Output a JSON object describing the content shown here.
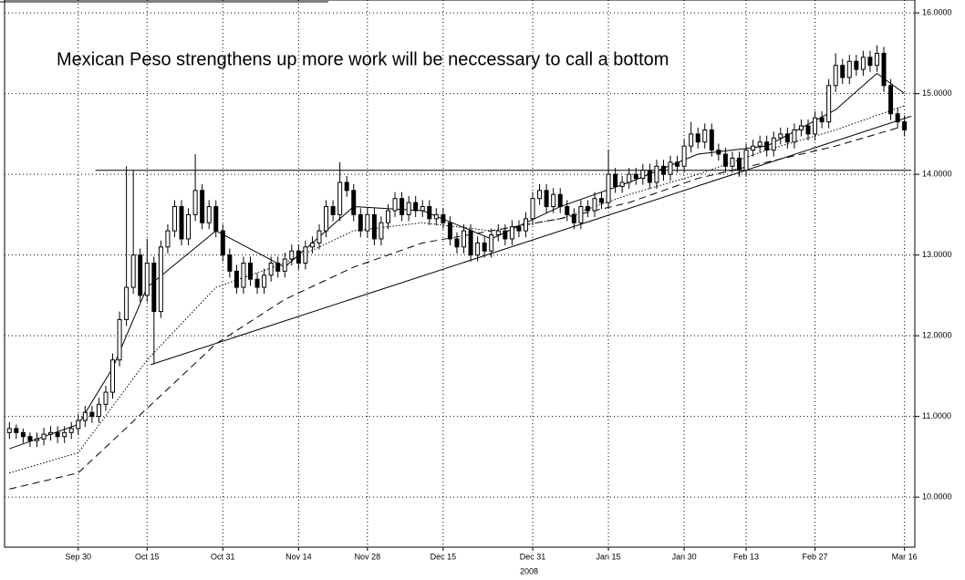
{
  "chart_data": {
    "type": "candlestick",
    "title": "Mexican Peso strengthens up more work will be neccessary to call a bottom",
    "xlabel": "2008",
    "xlim": [
      -0.7,
      131.5
    ],
    "ylim": [
      9.38,
      16.16
    ],
    "yticks": [
      {
        "value": 16,
        "label": "16.0000"
      },
      {
        "value": 15,
        "label": "15.0000"
      },
      {
        "value": 14,
        "label": "14.0000"
      },
      {
        "value": 13,
        "label": "13.0000"
      },
      {
        "value": 12,
        "label": "12.0000"
      },
      {
        "value": 11,
        "label": "11.0000"
      },
      {
        "value": 10,
        "label": "10.0000"
      }
    ],
    "xticks": [
      {
        "value": 10,
        "label": "Sep 30"
      },
      {
        "value": 20,
        "label": "Oct 15"
      },
      {
        "value": 31,
        "label": "Oct 31"
      },
      {
        "value": 42,
        "label": "Nov 14"
      },
      {
        "value": 52,
        "label": "Nov 28"
      },
      {
        "value": 63,
        "label": "Dec 15"
      },
      {
        "value": 76,
        "label": "Dec 31"
      },
      {
        "value": 87,
        "label": "Jan 15"
      },
      {
        "value": 98,
        "label": "Jan 30"
      },
      {
        "value": 107,
        "label": "Feb 13"
      },
      {
        "value": 117,
        "label": "Feb 27"
      },
      {
        "value": 130,
        "label": "Mar 16"
      }
    ],
    "grid": true,
    "up_color": "#ffffff",
    "down_color": "#000000",
    "ohlc": [
      [
        10.8,
        10.93,
        10.72,
        10.85
      ],
      [
        10.85,
        10.9,
        10.72,
        10.8
      ],
      [
        10.8,
        10.85,
        10.67,
        10.75
      ],
      [
        10.75,
        10.8,
        10.62,
        10.7
      ],
      [
        10.7,
        10.8,
        10.62,
        10.72
      ],
      [
        10.72,
        10.86,
        10.64,
        10.78
      ],
      [
        10.78,
        10.88,
        10.7,
        10.8
      ],
      [
        10.8,
        10.88,
        10.67,
        10.75
      ],
      [
        10.75,
        10.88,
        10.67,
        10.8
      ],
      [
        10.8,
        10.93,
        10.72,
        10.85
      ],
      [
        10.85,
        11.03,
        10.77,
        10.95
      ],
      [
        10.95,
        11.13,
        10.87,
        11.05
      ],
      [
        11.05,
        11.13,
        10.92,
        11.0
      ],
      [
        11.0,
        11.23,
        10.92,
        11.15
      ],
      [
        11.15,
        11.38,
        11.07,
        11.3
      ],
      [
        11.3,
        11.78,
        11.22,
        11.7
      ],
      [
        11.7,
        12.3,
        11.62,
        12.2
      ],
      [
        12.2,
        14.1,
        12.12,
        12.6
      ],
      [
        12.6,
        14.05,
        12.52,
        13.0
      ],
      [
        13.0,
        13.08,
        12.42,
        12.5
      ],
      [
        12.5,
        13.2,
        12.42,
        12.9
      ],
      [
        12.9,
        12.98,
        11.65,
        12.3
      ],
      [
        12.3,
        13.18,
        12.22,
        13.1
      ],
      [
        13.1,
        13.38,
        13.02,
        13.3
      ],
      [
        13.3,
        13.68,
        13.22,
        13.6
      ],
      [
        13.6,
        13.68,
        13.12,
        13.2
      ],
      [
        13.2,
        13.58,
        13.12,
        13.5
      ],
      [
        13.5,
        14.25,
        13.42,
        13.8
      ],
      [
        13.8,
        13.88,
        13.32,
        13.4
      ],
      [
        13.4,
        13.68,
        13.32,
        13.6
      ],
      [
        13.6,
        13.68,
        13.22,
        13.3
      ],
      [
        13.3,
        13.38,
        12.92,
        13.0
      ],
      [
        13.0,
        13.08,
        12.72,
        12.8
      ],
      [
        12.8,
        12.88,
        12.52,
        12.6
      ],
      [
        12.6,
        12.98,
        12.52,
        12.9
      ],
      [
        12.9,
        12.98,
        12.62,
        12.7
      ],
      [
        12.7,
        12.78,
        12.52,
        12.6
      ],
      [
        12.6,
        12.83,
        12.52,
        12.75
      ],
      [
        12.75,
        12.98,
        12.67,
        12.9
      ],
      [
        12.9,
        12.98,
        12.72,
        12.8
      ],
      [
        12.8,
        13.03,
        12.72,
        12.95
      ],
      [
        12.95,
        13.13,
        12.87,
        13.05
      ],
      [
        13.05,
        13.13,
        12.82,
        12.9
      ],
      [
        12.9,
        13.18,
        12.82,
        13.1
      ],
      [
        13.1,
        13.23,
        13.02,
        13.15
      ],
      [
        13.15,
        13.38,
        13.07,
        13.3
      ],
      [
        13.3,
        13.68,
        13.22,
        13.6
      ],
      [
        13.6,
        13.68,
        13.42,
        13.5
      ],
      [
        13.5,
        14.15,
        13.42,
        13.9
      ],
      [
        13.9,
        13.98,
        13.72,
        13.8
      ],
      [
        13.8,
        13.88,
        13.42,
        13.5
      ],
      [
        13.5,
        13.58,
        13.22,
        13.3
      ],
      [
        13.3,
        13.58,
        13.22,
        13.5
      ],
      [
        13.5,
        13.58,
        13.12,
        13.2
      ],
      [
        13.2,
        13.48,
        13.12,
        13.4
      ],
      [
        13.4,
        13.63,
        13.32,
        13.55
      ],
      [
        13.55,
        13.78,
        13.47,
        13.7
      ],
      [
        13.7,
        13.78,
        13.42,
        13.5
      ],
      [
        13.5,
        13.73,
        13.42,
        13.65
      ],
      [
        13.65,
        13.73,
        13.47,
        13.55
      ],
      [
        13.55,
        13.68,
        13.47,
        13.6
      ],
      [
        13.6,
        13.68,
        13.37,
        13.45
      ],
      [
        13.45,
        13.58,
        13.37,
        13.5
      ],
      [
        13.5,
        13.58,
        13.32,
        13.4
      ],
      [
        13.4,
        13.48,
        13.12,
        13.2
      ],
      [
        13.2,
        13.28,
        13.02,
        13.1
      ],
      [
        13.1,
        13.38,
        13.02,
        13.3
      ],
      [
        13.3,
        13.38,
        12.92,
        13.0
      ],
      [
        13.0,
        13.23,
        12.92,
        13.15
      ],
      [
        13.15,
        13.23,
        12.97,
        13.05
      ],
      [
        13.05,
        13.33,
        12.97,
        13.25
      ],
      [
        13.25,
        13.38,
        13.17,
        13.3
      ],
      [
        13.3,
        13.38,
        13.12,
        13.2
      ],
      [
        13.2,
        13.43,
        13.12,
        13.35
      ],
      [
        13.35,
        13.43,
        13.22,
        13.3
      ],
      [
        13.3,
        13.53,
        13.22,
        13.45
      ],
      [
        13.45,
        13.78,
        13.37,
        13.7
      ],
      [
        13.7,
        13.88,
        13.62,
        13.8
      ],
      [
        13.8,
        13.88,
        13.52,
        13.6
      ],
      [
        13.6,
        13.83,
        13.52,
        13.75
      ],
      [
        13.75,
        13.83,
        13.52,
        13.6
      ],
      [
        13.6,
        13.68,
        13.42,
        13.5
      ],
      [
        13.5,
        13.58,
        13.32,
        13.4
      ],
      [
        13.4,
        13.68,
        13.32,
        13.6
      ],
      [
        13.6,
        13.68,
        13.47,
        13.55
      ],
      [
        13.55,
        13.78,
        13.47,
        13.7
      ],
      [
        13.7,
        13.78,
        13.57,
        13.65
      ],
      [
        13.65,
        14.3,
        13.57,
        14.0
      ],
      [
        14.0,
        14.08,
        13.77,
        13.85
      ],
      [
        13.85,
        13.98,
        13.77,
        13.9
      ],
      [
        13.9,
        14.08,
        13.82,
        14.0
      ],
      [
        14.0,
        14.08,
        13.87,
        13.95
      ],
      [
        13.95,
        14.13,
        13.87,
        14.05
      ],
      [
        14.05,
        14.13,
        13.82,
        13.9
      ],
      [
        13.9,
        14.18,
        13.82,
        14.1
      ],
      [
        14.1,
        14.18,
        13.92,
        14.0
      ],
      [
        14.0,
        14.23,
        13.92,
        14.15
      ],
      [
        14.15,
        14.23,
        14.02,
        14.1
      ],
      [
        14.1,
        14.43,
        14.02,
        14.35
      ],
      [
        14.35,
        14.65,
        14.27,
        14.5
      ],
      [
        14.5,
        14.58,
        14.32,
        14.4
      ],
      [
        14.4,
        14.63,
        14.32,
        14.55
      ],
      [
        14.55,
        14.63,
        14.22,
        14.3
      ],
      [
        14.3,
        14.38,
        14.17,
        14.25
      ],
      [
        14.25,
        14.33,
        14.02,
        14.1
      ],
      [
        14.1,
        14.28,
        14.02,
        14.2
      ],
      [
        14.2,
        14.28,
        13.97,
        14.05
      ],
      [
        14.05,
        14.38,
        13.97,
        14.3
      ],
      [
        14.3,
        14.43,
        14.22,
        14.35
      ],
      [
        14.35,
        14.48,
        14.27,
        14.4
      ],
      [
        14.4,
        14.48,
        14.22,
        14.3
      ],
      [
        14.3,
        14.53,
        14.22,
        14.45
      ],
      [
        14.45,
        14.58,
        14.37,
        14.5
      ],
      [
        14.5,
        14.58,
        14.32,
        14.4
      ],
      [
        14.4,
        14.63,
        14.32,
        14.55
      ],
      [
        14.55,
        14.68,
        14.47,
        14.6
      ],
      [
        14.6,
        14.68,
        14.42,
        14.5
      ],
      [
        14.5,
        14.78,
        14.42,
        14.7
      ],
      [
        14.7,
        14.78,
        14.57,
        14.65
      ],
      [
        14.65,
        15.18,
        14.57,
        15.1
      ],
      [
        15.1,
        15.5,
        15.02,
        15.35
      ],
      [
        15.35,
        15.43,
        15.12,
        15.2
      ],
      [
        15.2,
        15.48,
        15.12,
        15.4
      ],
      [
        15.4,
        15.48,
        15.22,
        15.3
      ],
      [
        15.3,
        15.53,
        15.22,
        15.45
      ],
      [
        15.45,
        15.53,
        15.27,
        15.35
      ],
      [
        15.35,
        15.6,
        15.27,
        15.5
      ],
      [
        15.5,
        15.58,
        15.02,
        15.1
      ],
      [
        15.1,
        15.18,
        14.67,
        14.75
      ],
      [
        14.75,
        14.83,
        14.57,
        14.65
      ],
      [
        14.65,
        14.73,
        14.47,
        14.55
      ]
    ],
    "series": [
      {
        "style": "solid",
        "color": "#000000",
        "x": [
          0,
          10,
          15,
          20,
          30,
          40,
          50,
          60,
          70,
          80,
          90,
          100,
          110,
          120,
          126,
          130
        ],
        "values": [
          10.6,
          10.9,
          11.6,
          12.6,
          13.3,
          12.85,
          13.6,
          13.55,
          13.2,
          13.6,
          13.9,
          14.25,
          14.35,
          14.8,
          15.25,
          15.0
        ]
      },
      {
        "style": "dotted",
        "color": "#000000",
        "x": [
          0,
          10,
          20,
          30,
          40,
          50,
          60,
          70,
          80,
          90,
          100,
          110,
          120,
          130
        ],
        "values": [
          10.3,
          10.55,
          11.7,
          12.6,
          12.9,
          13.3,
          13.4,
          13.3,
          13.45,
          13.75,
          14.0,
          14.3,
          14.55,
          14.85
        ]
      },
      {
        "style": "dashed",
        "color": "#000000",
        "x": [
          0,
          10,
          20,
          30,
          40,
          50,
          60,
          70,
          80,
          90,
          100,
          110,
          120,
          130
        ],
        "values": [
          10.1,
          10.3,
          11.1,
          11.9,
          12.45,
          12.85,
          13.15,
          13.3,
          13.45,
          13.65,
          13.95,
          14.15,
          14.35,
          14.6
        ]
      }
    ],
    "lines": [
      {
        "x": [
          12.5,
          131
        ],
        "values": [
          14.05,
          14.05
        ]
      },
      {
        "x": [
          20.5,
          131
        ],
        "values": [
          11.64,
          14.72
        ]
      }
    ]
  }
}
